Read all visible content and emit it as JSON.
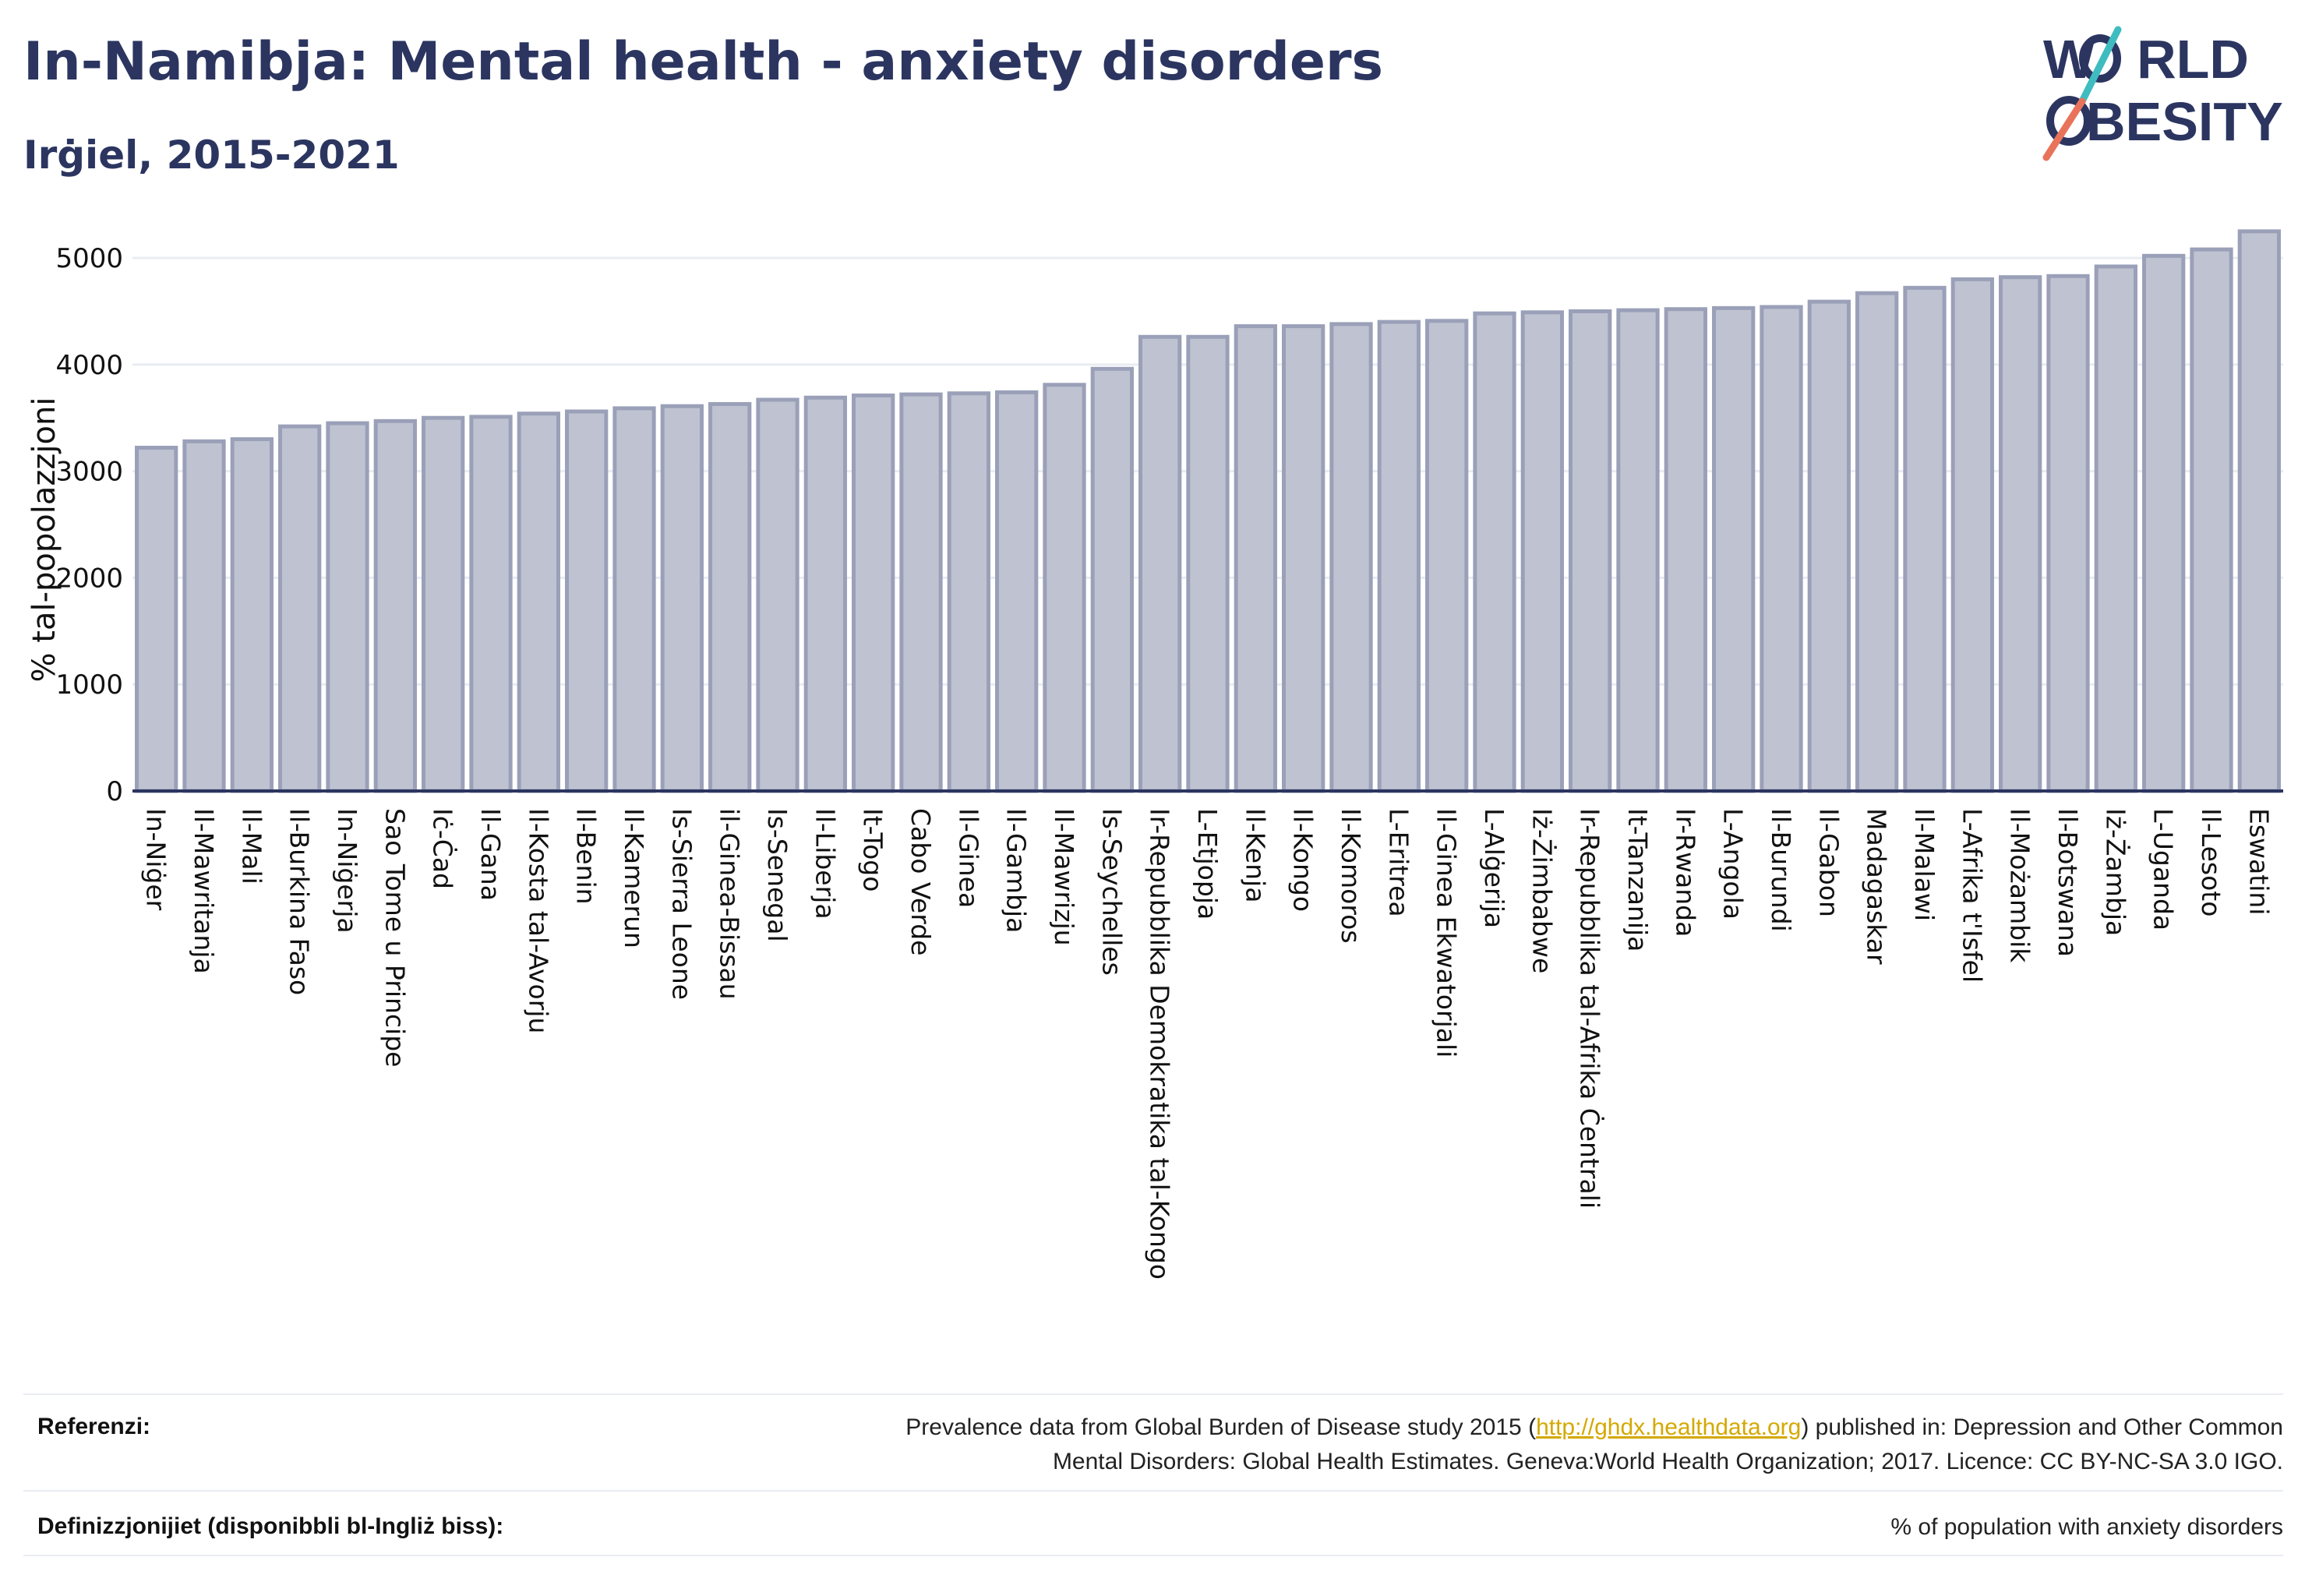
{
  "header": {
    "title": "In-Namibja: Mental health - anxiety disorders",
    "subtitle": "Irġiel, 2015-2021"
  },
  "logo": {
    "line1": "W",
    "line1_rest": "RLD",
    "line2_rest": "BESITY",
    "colors": {
      "text": "#2b3560",
      "slash_teal": "#3fbcc0",
      "slash_coral": "#e8735a"
    }
  },
  "chart_data": {
    "type": "bar",
    "ylabel": "% tal-popolazzjoni",
    "ylim": [
      0,
      5300
    ],
    "yticks": [
      0,
      1000,
      2000,
      3000,
      4000,
      5000
    ],
    "grid": true,
    "bar_fill": "#bfc3d1",
    "bar_stroke": "#9aa0b8",
    "categories": [
      "In-Niġer",
      "Il-Mawritanja",
      "Il-Mali",
      "Il-Burkina Faso",
      "In-Niġerja",
      "Sao Tome u Principe",
      "Iċ-Ċad",
      "Il-Gana",
      "Il-Kosta tal-Avorju",
      "Il-Benin",
      "Il-Kamerun",
      "Is-Sierra Leone",
      "il-Ginea-Bissau",
      "Is-Senegal",
      "Il-Liberja",
      "It-Togo",
      "Cabo Verde",
      "Il-Ginea",
      "Il-Gambja",
      "Il-Mawrizju",
      "Is-Seychelles",
      "Ir-Repubblika Demokratika tal-Kongo",
      "L-Etjopja",
      "Il-Kenja",
      "Il-Kongo",
      "Il-Komoros",
      "L-Eritrea",
      "Il-Ginea Ekwatorjali",
      "L-Alġerija",
      "Iż-Żimbabwe",
      "Ir-Repubblika tal-Afrika Ċentrali",
      "It-Tanzanija",
      "Ir-Rwanda",
      "L-Angola",
      "Il-Burundi",
      "Il-Gabon",
      "Madagaskar",
      "Il-Malawi",
      "L-Afrika t'Isfel",
      "Il-Możambik",
      "Il-Botswana",
      "Iż-Żambja",
      "L-Uganda",
      "Il-Lesoto",
      "Eswatini"
    ],
    "values": [
      3220,
      3280,
      3300,
      3420,
      3450,
      3470,
      3500,
      3510,
      3540,
      3560,
      3590,
      3610,
      3630,
      3670,
      3690,
      3710,
      3720,
      3730,
      3740,
      3810,
      3960,
      4260,
      4260,
      4360,
      4360,
      4380,
      4400,
      4410,
      4480,
      4490,
      4500,
      4510,
      4520,
      4530,
      4540,
      4590,
      4670,
      4720,
      4800,
      4820,
      4830,
      4920,
      5020,
      5080,
      5250
    ]
  },
  "footer": {
    "references_label": "Referenzi:",
    "references_text_1": "Prevalence data from Global Burden of Disease study 2015 (",
    "references_link": "http://ghdx.healthdata.org",
    "references_text_2": ") published in: Depression and Other Common",
    "references_text_3": "Mental Disorders: Global Health Estimates. Geneva:World Health Organization; 2017. Licence: CC BY-NC-SA 3.0 IGO.",
    "definitions_label": "Definizzjonijiet (disponibbli bl-Ingliż biss):",
    "definitions_text": "% of population with anxiety disorders"
  }
}
